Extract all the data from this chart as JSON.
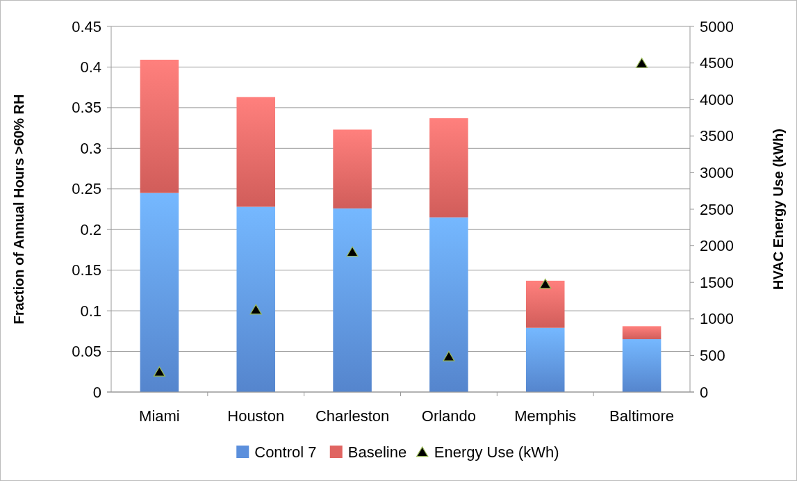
{
  "chart_data": {
    "type": "bar",
    "stacked": true,
    "categories": [
      "Miami",
      "Houston",
      "Charleston",
      "Orlando",
      "Memphis",
      "Baltimore"
    ],
    "series": [
      {
        "name": "Control 7",
        "color": "#5b8fdc",
        "values": [
          0.245,
          0.228,
          0.226,
          0.215,
          0.079,
          0.065
        ]
      },
      {
        "name": "Baseline",
        "color": "#e06461",
        "values": [
          0.164,
          0.135,
          0.097,
          0.122,
          0.058,
          0.016
        ]
      },
      {
        "name": "Energy Use (kWh)",
        "type": "scatter",
        "axis": "y2",
        "color": "#000000",
        "marker": "triangle",
        "values": [
          270,
          1120,
          1910,
          480,
          1470,
          4490
        ]
      }
    ],
    "ylabel": "Fraction of Annual Hours >60% RH",
    "y2label": "HVAC Energy Use (kWh)",
    "ylim": [
      0,
      0.45
    ],
    "yticks": [
      0,
      0.05,
      0.1,
      0.15,
      0.2,
      0.25,
      0.3,
      0.35,
      0.4,
      0.45
    ],
    "y2lim": [
      0,
      5000
    ],
    "y2ticks": [
      0,
      500,
      1000,
      1500,
      2000,
      2500,
      3000,
      3500,
      4000,
      4500,
      5000
    ],
    "grid": "y",
    "legend": "bottom"
  }
}
